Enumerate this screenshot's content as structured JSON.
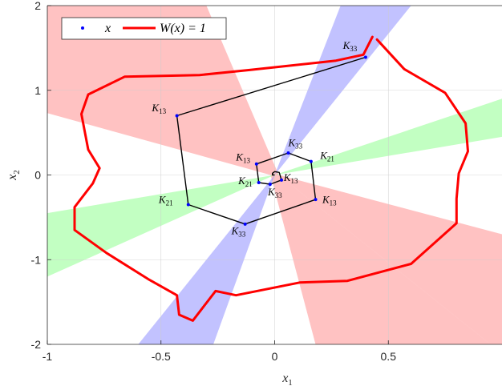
{
  "chart_data": {
    "type": "line",
    "xlabel": "x1",
    "ylabel": "x2",
    "xlim": [
      -1,
      1
    ],
    "ylim": [
      -2,
      2
    ],
    "x_ticks": [
      -1,
      -0.5,
      0,
      0.5
    ],
    "x_tick_labels": [
      "-1",
      "-0.5",
      "0",
      "0.5"
    ],
    "y_ticks": [
      -2,
      -1,
      0,
      1,
      2
    ],
    "y_tick_labels": [
      "-2",
      "-1",
      "0",
      "1",
      "2"
    ],
    "grid": true,
    "legend": {
      "position": "top-left",
      "entries": [
        {
          "label": "x",
          "marker": "dot",
          "color": "#0000ff"
        },
        {
          "label": "W(x) = 1",
          "style": "line",
          "color": "#ff0000"
        }
      ]
    },
    "colors": {
      "trajectory": "#000000",
      "points": "#0000ff",
      "level_set": "#ff0000",
      "region_K13": "#ff9999",
      "region_K21": "#99ff99",
      "region_K33": "#9999ff"
    },
    "regions": [
      {
        "name": "K13",
        "color": "#ff9999",
        "polygon": [
          [
            -1,
            2
          ],
          [
            -0.3,
            2
          ],
          [
            0.018,
            0.0
          ],
          [
            0.95,
            -2
          ],
          [
            0.18,
            -2
          ],
          [
            -0.018,
            0.0
          ],
          [
            -1,
            0.73
          ]
        ]
      },
      {
        "name": "K13",
        "color": "#ff9999",
        "polygon": [
          [
            0.018,
            0.0
          ],
          [
            1,
            -0.7
          ],
          [
            1,
            -2
          ],
          [
            0.95,
            -2
          ]
        ]
      },
      {
        "name": "K21",
        "color": "#99ff99",
        "polygon": [
          [
            0,
            0
          ],
          [
            1,
            0.9
          ],
          [
            1,
            0.45
          ]
        ]
      },
      {
        "name": "K21",
        "color": "#99ff99",
        "polygon": [
          [
            0,
            0
          ],
          [
            -1,
            -0.45
          ],
          [
            -1,
            -1.2
          ]
        ]
      },
      {
        "name": "K33",
        "color": "#9999ff",
        "polygon": [
          [
            0,
            0
          ],
          [
            0.29,
            2
          ],
          [
            0.6,
            2
          ]
        ]
      },
      {
        "name": "K33",
        "color": "#9999ff",
        "polygon": [
          [
            0,
            0
          ],
          [
            -0.27,
            -2
          ],
          [
            -0.6,
            -2
          ]
        ]
      }
    ],
    "series": [
      {
        "type": "line",
        "color": "#000000",
        "points": [
          [
            0.4,
            1.39
          ],
          [
            -0.43,
            0.7
          ],
          [
            -0.38,
            -0.35
          ],
          [
            -0.13,
            -0.58
          ],
          [
            0.18,
            -0.29
          ],
          [
            0.16,
            0.16
          ],
          [
            0.06,
            0.26
          ],
          [
            -0.08,
            0.13
          ],
          [
            -0.07,
            -0.09
          ],
          [
            -0.02,
            -0.11
          ],
          [
            0.03,
            -0.06
          ],
          [
            0.02,
            0.03
          ],
          [
            0.0,
            0.04
          ],
          [
            -0.01,
            0.02
          ],
          [
            -0.01,
            0.0
          ],
          [
            0.0,
            0.0
          ]
        ]
      },
      {
        "type": "scatter",
        "color": "#0000ff",
        "points": [
          [
            0.4,
            1.39
          ],
          [
            -0.43,
            0.7
          ],
          [
            -0.38,
            -0.35
          ],
          [
            -0.13,
            -0.58
          ],
          [
            0.18,
            -0.29
          ],
          [
            0.16,
            0.16
          ],
          [
            0.06,
            0.26
          ],
          [
            -0.08,
            0.13
          ],
          [
            -0.07,
            -0.09
          ],
          [
            -0.02,
            -0.11
          ],
          [
            0.03,
            -0.06
          ]
        ]
      },
      {
        "type": "line",
        "name": "W(x) = 1",
        "color": "#ff0000",
        "points": [
          [
            0.43,
            1.63
          ],
          [
            0.39,
            1.42
          ],
          [
            0.27,
            1.35
          ],
          [
            -0.11,
            1.24
          ],
          [
            -0.33,
            1.18
          ],
          [
            -0.66,
            1.16
          ],
          [
            -0.82,
            0.95
          ],
          [
            -0.85,
            0.72
          ],
          [
            -0.82,
            0.3
          ],
          [
            -0.77,
            0.08
          ],
          [
            -0.8,
            -0.1
          ],
          [
            -0.88,
            -0.38
          ],
          [
            -0.88,
            -0.65
          ],
          [
            -0.74,
            -0.92
          ],
          [
            -0.55,
            -1.24
          ],
          [
            -0.43,
            -1.42
          ],
          [
            -0.42,
            -1.65
          ],
          [
            -0.36,
            -1.72
          ],
          [
            -0.26,
            -1.37
          ],
          [
            -0.17,
            -1.42
          ],
          [
            0.11,
            -1.27
          ],
          [
            0.32,
            -1.25
          ],
          [
            0.6,
            -1.05
          ],
          [
            0.8,
            -0.57
          ],
          [
            0.8,
            -0.28
          ],
          [
            0.81,
            0.02
          ],
          [
            0.85,
            0.28
          ],
          [
            0.84,
            0.61
          ],
          [
            0.75,
            0.97
          ],
          [
            0.57,
            1.25
          ],
          [
            0.45,
            1.6
          ]
        ]
      }
    ],
    "labels": [
      {
        "text": "K33",
        "x": 0.4,
        "y": 1.39,
        "dx": -0.1,
        "dy": 0.1
      },
      {
        "text": "K13",
        "x": -0.43,
        "y": 0.7,
        "dx": -0.11,
        "dy": 0.05
      },
      {
        "text": "K21",
        "x": -0.38,
        "y": -0.35,
        "dx": -0.13,
        "dy": 0.02
      },
      {
        "text": "K33",
        "x": -0.13,
        "y": -0.58,
        "dx": -0.06,
        "dy": -0.12
      },
      {
        "text": "K13",
        "x": 0.18,
        "y": -0.29,
        "dx": 0.03,
        "dy": -0.04
      },
      {
        "text": "K21",
        "x": 0.16,
        "y": 0.16,
        "dx": 0.04,
        "dy": 0.03
      },
      {
        "text": "K33",
        "x": 0.06,
        "y": 0.26,
        "dx": 0.0,
        "dy": 0.08
      },
      {
        "text": "K13",
        "x": -0.08,
        "y": 0.13,
        "dx": -0.09,
        "dy": 0.04
      },
      {
        "text": "K21",
        "x": -0.07,
        "y": -0.09,
        "dx": -0.09,
        "dy": -0.02
      },
      {
        "text": "K33",
        "x": -0.02,
        "y": -0.11,
        "dx": -0.01,
        "dy": -0.13
      },
      {
        "text": "K13",
        "x": 0.03,
        "y": -0.06,
        "dx": 0.01,
        "dy": -0.01
      }
    ]
  }
}
